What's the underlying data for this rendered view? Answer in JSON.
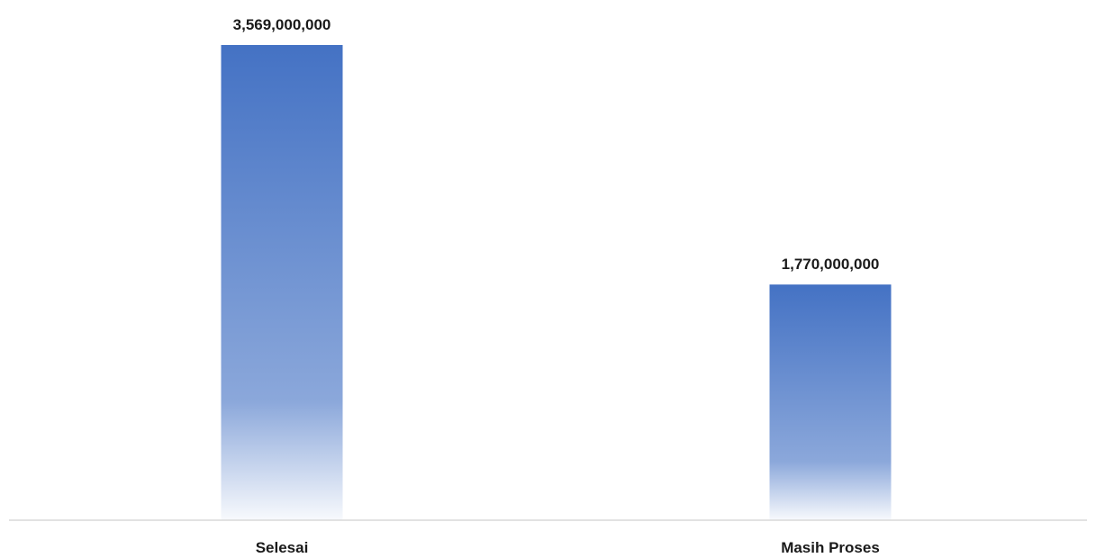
{
  "chart_data": {
    "type": "bar",
    "categories": [
      "Selesai",
      "Masih Proses"
    ],
    "values": [
      3569000000,
      1770000000
    ],
    "value_labels": [
      "3,569,000,000",
      "1,770,000,000"
    ],
    "title": "",
    "xlabel": "",
    "ylabel": "",
    "ylim": [
      0,
      3569000000
    ],
    "grid": false,
    "legend": "none",
    "bar_color": "#4472C4"
  }
}
